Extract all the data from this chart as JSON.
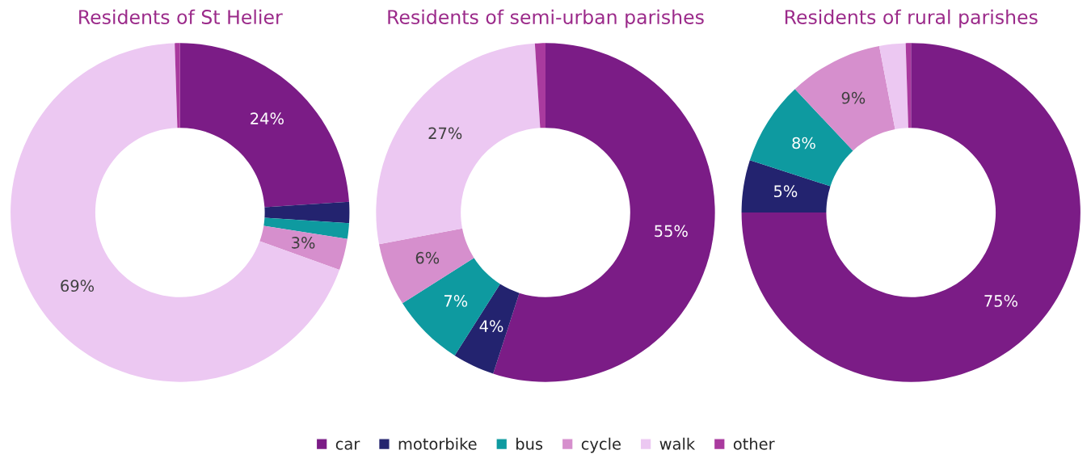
{
  "chart_data": [
    {
      "type": "donut",
      "title": "Residents of St Helier",
      "categories": [
        "car",
        "motorbike",
        "bus",
        "cycle",
        "walk",
        "other"
      ],
      "values": [
        24,
        2,
        1.5,
        3,
        69,
        0.5
      ],
      "value_labels": [
        "24%",
        null,
        null,
        "3%",
        "69%",
        null
      ],
      "colors": [
        "#7b1c86",
        "#23236f",
        "#0e9aa0",
        "#d68fcd",
        "#ecc8f2",
        "#a93a9e"
      ],
      "legend": "bottom"
    },
    {
      "type": "donut",
      "title": "Residents of semi-urban parishes",
      "categories": [
        null,
        null,
        null,
        null,
        null,
        null
      ],
      "values": [
        55,
        4,
        7,
        6,
        27,
        1
      ],
      "value_labels": [
        "55%",
        "4%",
        "7%",
        "6%",
        "27%",
        null
      ],
      "colors": [
        "#7b1c86",
        "#23236f",
        "#0e9aa0",
        "#d68fcd",
        "#ecc8f2",
        "#a93a9e"
      ]
    },
    {
      "type": "donut",
      "title": "Residents of rural parishes",
      "categories": [
        null,
        null,
        null,
        null,
        null,
        null
      ],
      "values": [
        75,
        5,
        8,
        9,
        2.5,
        0.5
      ],
      "value_labels": [
        "75%",
        "5%",
        "8%",
        "9%",
        null,
        null
      ],
      "colors": [
        "#7b1c86",
        "#23236f",
        "#0e9aa0",
        "#d68fcd",
        "#ecc8f2",
        "#a93a9e"
      ]
    }
  ]
}
